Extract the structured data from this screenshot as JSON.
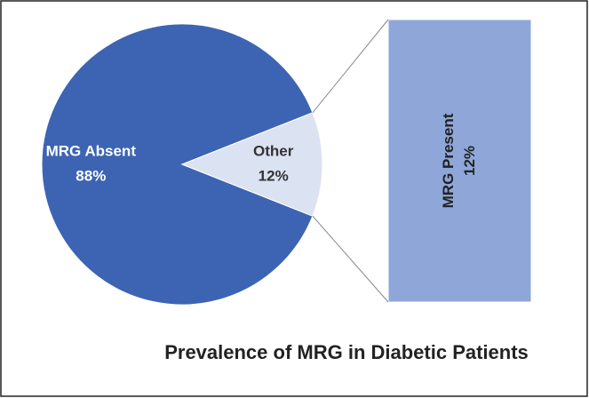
{
  "chart_data": {
    "type": "pie",
    "title": "Prevalence of MRG in Diabetic Patients",
    "categories": [
      "MRG Absent",
      "Other"
    ],
    "values": [
      88,
      12
    ],
    "value_labels": [
      "88%",
      "12%"
    ],
    "colors": [
      "#3d64b3",
      "#dbe2f2"
    ],
    "secondary": {
      "type": "bar",
      "categories": [
        "MRG Present"
      ],
      "values": [
        12
      ],
      "value_labels": [
        "12%"
      ],
      "colors": [
        "#8ea7d8"
      ]
    }
  }
}
